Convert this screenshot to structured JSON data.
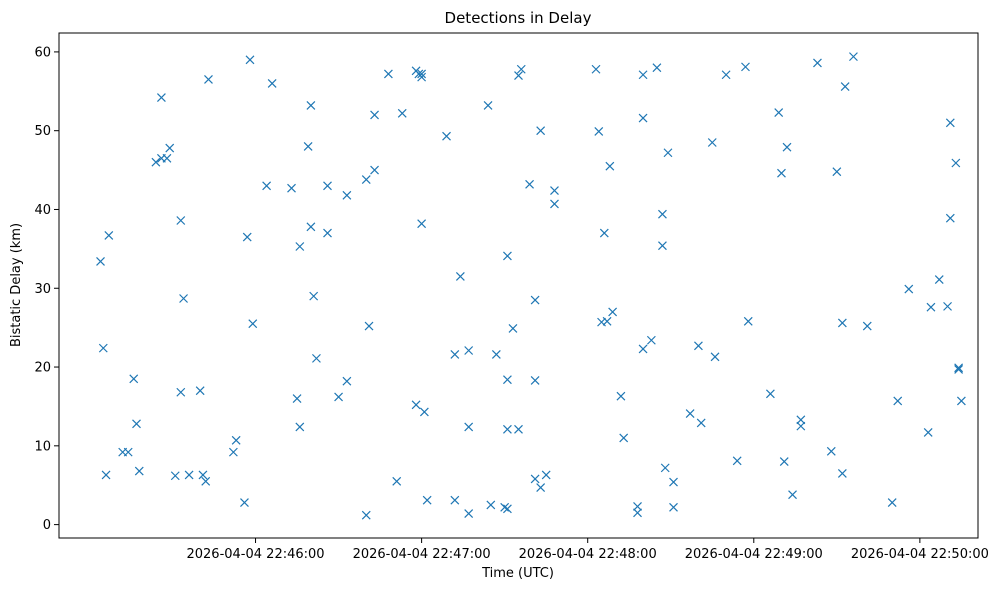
{
  "chart_data": {
    "type": "scatter",
    "title": "Detections in Delay",
    "xlabel": "Time (UTC)",
    "ylabel": "Bistatic Delay (km)",
    "xlim": [
      "2026-04-04 22:44:49",
      "2026-04-04 22:50:21"
    ],
    "ylim": [
      -1.7,
      62.4
    ],
    "x_ticks": [
      "2026-04-04 22:46:00",
      "2026-04-04 22:47:00",
      "2026-04-04 22:48:00",
      "2026-04-04 22:49:00",
      "2026-04-04 22:50:00"
    ],
    "y_ticks": [
      0,
      10,
      20,
      30,
      40,
      50,
      60
    ],
    "marker": "x",
    "grid": false,
    "series": [
      {
        "color": "#1f77b4",
        "points": [
          [
            "2026-04-04 22:45:04",
            33.4
          ],
          [
            "2026-04-04 22:45:05",
            22.4
          ],
          [
            "2026-04-04 22:45:06",
            6.3
          ],
          [
            "2026-04-04 22:45:07",
            36.7
          ],
          [
            "2026-04-04 22:45:12",
            9.2
          ],
          [
            "2026-04-04 22:45:14",
            9.2
          ],
          [
            "2026-04-04 22:45:16",
            18.5
          ],
          [
            "2026-04-04 22:45:17",
            12.8
          ],
          [
            "2026-04-04 22:45:18",
            6.8
          ],
          [
            "2026-04-04 22:45:24",
            46.0
          ],
          [
            "2026-04-04 22:45:26",
            46.5
          ],
          [
            "2026-04-04 22:45:26",
            54.2
          ],
          [
            "2026-04-04 22:45:28",
            46.5
          ],
          [
            "2026-04-04 22:45:29",
            47.8
          ],
          [
            "2026-04-04 22:45:31",
            6.2
          ],
          [
            "2026-04-04 22:45:33",
            38.6
          ],
          [
            "2026-04-04 22:45:33",
            16.8
          ],
          [
            "2026-04-04 22:45:34",
            28.7
          ],
          [
            "2026-04-04 22:45:36",
            6.3
          ],
          [
            "2026-04-04 22:45:40",
            17.0
          ],
          [
            "2026-04-04 22:45:41",
            6.3
          ],
          [
            "2026-04-04 22:45:42",
            5.5
          ],
          [
            "2026-04-04 22:45:43",
            56.5
          ],
          [
            "2026-04-04 22:45:52",
            9.2
          ],
          [
            "2026-04-04 22:45:53",
            10.7
          ],
          [
            "2026-04-04 22:45:56",
            2.8
          ],
          [
            "2026-04-04 22:45:57",
            36.5
          ],
          [
            "2026-04-04 22:45:58",
            59.0
          ],
          [
            "2026-04-04 22:45:59",
            25.5
          ],
          [
            "2026-04-04 22:46:04",
            43.0
          ],
          [
            "2026-04-04 22:46:06",
            56.0
          ],
          [
            "2026-04-04 22:46:13",
            42.7
          ],
          [
            "2026-04-04 22:46:15",
            16.0
          ],
          [
            "2026-04-04 22:46:16",
            35.3
          ],
          [
            "2026-04-04 22:46:16",
            12.4
          ],
          [
            "2026-04-04 22:46:19",
            48.0
          ],
          [
            "2026-04-04 22:46:20",
            53.2
          ],
          [
            "2026-04-04 22:46:20",
            37.8
          ],
          [
            "2026-04-04 22:46:21",
            29.0
          ],
          [
            "2026-04-04 22:46:22",
            21.1
          ],
          [
            "2026-04-04 22:46:26",
            37.0
          ],
          [
            "2026-04-04 22:46:26",
            43.0
          ],
          [
            "2026-04-04 22:46:30",
            16.2
          ],
          [
            "2026-04-04 22:46:33",
            18.2
          ],
          [
            "2026-04-04 22:46:33",
            41.8
          ],
          [
            "2026-04-04 22:46:40",
            1.2
          ],
          [
            "2026-04-04 22:46:40",
            43.8
          ],
          [
            "2026-04-04 22:46:41",
            25.2
          ],
          [
            "2026-04-04 22:46:43",
            52.0
          ],
          [
            "2026-04-04 22:46:43",
            45.0
          ],
          [
            "2026-04-04 22:46:48",
            57.2
          ],
          [
            "2026-04-04 22:46:51",
            5.5
          ],
          [
            "2026-04-04 22:46:53",
            52.2
          ],
          [
            "2026-04-04 22:46:58",
            15.2
          ],
          [
            "2026-04-04 22:46:58",
            57.6
          ],
          [
            "2026-04-04 22:46:59",
            57.2
          ],
          [
            "2026-04-04 22:47:00",
            56.8
          ],
          [
            "2026-04-04 22:47:00",
            57.2
          ],
          [
            "2026-04-04 22:47:00",
            38.2
          ],
          [
            "2026-04-04 22:47:01",
            14.3
          ],
          [
            "2026-04-04 22:47:02",
            3.1
          ],
          [
            "2026-04-04 22:47:09",
            49.3
          ],
          [
            "2026-04-04 22:47:12",
            21.6
          ],
          [
            "2026-04-04 22:47:12",
            3.1
          ],
          [
            "2026-04-04 22:47:14",
            31.5
          ],
          [
            "2026-04-04 22:47:17",
            12.4
          ],
          [
            "2026-04-04 22:47:17",
            1.4
          ],
          [
            "2026-04-04 22:47:17",
            22.1
          ],
          [
            "2026-04-04 22:47:24",
            53.2
          ],
          [
            "2026-04-04 22:47:25",
            2.5
          ],
          [
            "2026-04-04 22:47:27",
            21.6
          ],
          [
            "2026-04-04 22:47:30",
            2.2
          ],
          [
            "2026-04-04 22:47:31",
            34.1
          ],
          [
            "2026-04-04 22:47:31",
            18.4
          ],
          [
            "2026-04-04 22:47:31",
            12.1
          ],
          [
            "2026-04-04 22:47:31",
            2.0
          ],
          [
            "2026-04-04 22:47:33",
            24.9
          ],
          [
            "2026-04-04 22:47:35",
            12.1
          ],
          [
            "2026-04-04 22:47:35",
            57.0
          ],
          [
            "2026-04-04 22:47:36",
            57.8
          ],
          [
            "2026-04-04 22:47:39",
            43.2
          ],
          [
            "2026-04-04 22:47:41",
            28.5
          ],
          [
            "2026-04-04 22:47:41",
            18.3
          ],
          [
            "2026-04-04 22:47:41",
            5.8
          ],
          [
            "2026-04-04 22:47:43",
            50.0
          ],
          [
            "2026-04-04 22:47:43",
            4.7
          ],
          [
            "2026-04-04 22:47:45",
            6.3
          ],
          [
            "2026-04-04 22:47:48",
            42.4
          ],
          [
            "2026-04-04 22:47:48",
            40.7
          ],
          [
            "2026-04-04 22:48:03",
            57.8
          ],
          [
            "2026-04-04 22:48:04",
            49.9
          ],
          [
            "2026-04-04 22:48:05",
            25.7
          ],
          [
            "2026-04-04 22:48:06",
            37.0
          ],
          [
            "2026-04-04 22:48:07",
            25.8
          ],
          [
            "2026-04-04 22:48:08",
            45.5
          ],
          [
            "2026-04-04 22:48:09",
            27.0
          ],
          [
            "2026-04-04 22:48:12",
            16.3
          ],
          [
            "2026-04-04 22:48:13",
            11.0
          ],
          [
            "2026-04-04 22:48:18",
            2.3
          ],
          [
            "2026-04-04 22:48:18",
            1.5
          ],
          [
            "2026-04-04 22:48:20",
            22.3
          ],
          [
            "2026-04-04 22:48:20",
            51.6
          ],
          [
            "2026-04-04 22:48:20",
            57.1
          ],
          [
            "2026-04-04 22:48:23",
            23.4
          ],
          [
            "2026-04-04 22:48:25",
            58.0
          ],
          [
            "2026-04-04 22:48:27",
            39.4
          ],
          [
            "2026-04-04 22:48:27",
            35.4
          ],
          [
            "2026-04-04 22:48:28",
            7.2
          ],
          [
            "2026-04-04 22:48:29",
            47.2
          ],
          [
            "2026-04-04 22:48:31",
            5.4
          ],
          [
            "2026-04-04 22:48:31",
            2.2
          ],
          [
            "2026-04-04 22:48:37",
            14.1
          ],
          [
            "2026-04-04 22:48:40",
            22.7
          ],
          [
            "2026-04-04 22:48:41",
            12.9
          ],
          [
            "2026-04-04 22:48:45",
            48.5
          ],
          [
            "2026-04-04 22:48:46",
            21.3
          ],
          [
            "2026-04-04 22:48:50",
            57.1
          ],
          [
            "2026-04-04 22:48:54",
            8.1
          ],
          [
            "2026-04-04 22:48:57",
            58.1
          ],
          [
            "2026-04-04 22:48:58",
            25.8
          ],
          [
            "2026-04-04 22:49:06",
            16.6
          ],
          [
            "2026-04-04 22:49:09",
            52.3
          ],
          [
            "2026-04-04 22:49:10",
            44.6
          ],
          [
            "2026-04-04 22:49:11",
            8.0
          ],
          [
            "2026-04-04 22:49:12",
            47.9
          ],
          [
            "2026-04-04 22:49:14",
            3.8
          ],
          [
            "2026-04-04 22:49:17",
            13.3
          ],
          [
            "2026-04-04 22:49:17",
            12.5
          ],
          [
            "2026-04-04 22:49:23",
            58.6
          ],
          [
            "2026-04-04 22:49:28",
            9.3
          ],
          [
            "2026-04-04 22:49:30",
            44.8
          ],
          [
            "2026-04-04 22:49:32",
            25.6
          ],
          [
            "2026-04-04 22:49:32",
            6.5
          ],
          [
            "2026-04-04 22:49:33",
            55.6
          ],
          [
            "2026-04-04 22:49:36",
            59.4
          ],
          [
            "2026-04-04 22:49:41",
            25.2
          ],
          [
            "2026-04-04 22:49:50",
            2.8
          ],
          [
            "2026-04-04 22:49:52",
            15.7
          ],
          [
            "2026-04-04 22:49:56",
            29.9
          ],
          [
            "2026-04-04 22:50:03",
            11.7
          ],
          [
            "2026-04-04 22:50:04",
            27.6
          ],
          [
            "2026-04-04 22:50:07",
            31.1
          ],
          [
            "2026-04-04 22:50:10",
            27.7
          ],
          [
            "2026-04-04 22:50:11",
            38.9
          ],
          [
            "2026-04-04 22:50:11",
            51.0
          ],
          [
            "2026-04-04 22:50:13",
            45.9
          ],
          [
            "2026-04-04 22:50:14",
            19.7
          ],
          [
            "2026-04-04 22:50:14",
            19.9
          ],
          [
            "2026-04-04 22:50:15",
            15.7
          ]
        ]
      }
    ]
  }
}
